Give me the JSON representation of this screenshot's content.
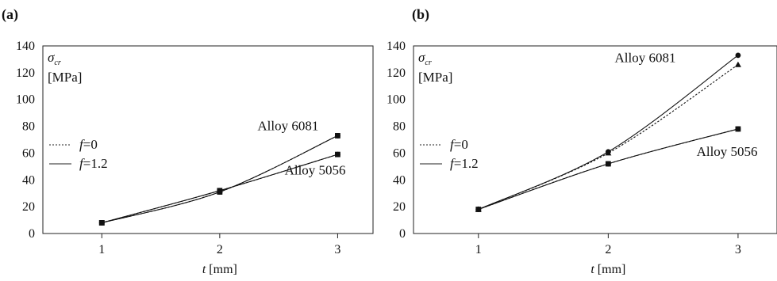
{
  "chart_data": [
    {
      "type": "line",
      "panel_label": "(a)",
      "x": [
        1,
        2,
        3
      ],
      "xlim": [
        0.5,
        3.3
      ],
      "ylim": [
        0,
        140
      ],
      "yticks": [
        0,
        20,
        40,
        60,
        80,
        100,
        120,
        140
      ],
      "xticks": [
        1,
        2,
        3
      ],
      "xlabel_var": "t",
      "xlabel_unit": " [mm]",
      "ylabel_var": "σ",
      "ylabel_sub": "cr",
      "ylabel_unit": "[MPa]",
      "legend": [
        {
          "var": "f",
          "text": "=0",
          "style": "dotted"
        },
        {
          "var": "f",
          "text": "=1.2",
          "style": "solid"
        }
      ],
      "series": [
        {
          "group": "Alloy 6081",
          "f": "0",
          "style": "dotted",
          "marker": "square",
          "values": [
            8,
            31,
            73
          ]
        },
        {
          "group": "Alloy 6081",
          "f": "1.2",
          "style": "solid",
          "marker": "circle",
          "values": [
            8,
            31,
            73
          ]
        },
        {
          "group": "Alloy 5056",
          "f": "0",
          "style": "dotted",
          "marker": "square",
          "values": [
            8,
            32,
            59
          ]
        },
        {
          "group": "Alloy 5056",
          "f": "1.2",
          "style": "solid",
          "marker": "circle",
          "values": [
            8,
            32,
            59
          ]
        }
      ],
      "annotations": [
        {
          "text": "Alloy 6081",
          "at": [
            2.32,
            77
          ]
        },
        {
          "text": "Alloy 5056",
          "at": [
            2.55,
            44
          ]
        }
      ]
    },
    {
      "type": "line",
      "panel_label": "(b)",
      "x": [
        1,
        2,
        3
      ],
      "xlim": [
        0.5,
        3.3
      ],
      "ylim": [
        0,
        140
      ],
      "yticks": [
        0,
        20,
        40,
        60,
        80,
        100,
        120,
        140
      ],
      "xticks": [
        1,
        2,
        3
      ],
      "xlabel_var": "t",
      "xlabel_unit": " [mm]",
      "ylabel_var": "σ",
      "ylabel_sub": "cr",
      "ylabel_unit": "[MPa]",
      "legend": [
        {
          "var": "f",
          "text": "=0",
          "style": "dotted"
        },
        {
          "var": "f",
          "text": "=1.2",
          "style": "solid"
        }
      ],
      "series": [
        {
          "group": "Alloy 6081",
          "f": "0",
          "style": "dotted",
          "marker": "triangle",
          "values": [
            18,
            60,
            126
          ]
        },
        {
          "group": "Alloy 6081",
          "f": "1.2",
          "style": "solid",
          "marker": "circle",
          "values": [
            18,
            61,
            133
          ]
        },
        {
          "group": "Alloy 5056",
          "f": "0",
          "style": "dotted",
          "marker": "square",
          "values": [
            18,
            52,
            78
          ]
        },
        {
          "group": "Alloy 5056",
          "f": "1.2",
          "style": "solid",
          "marker": "circle",
          "values": [
            18,
            52,
            78
          ]
        }
      ],
      "annotations": [
        {
          "text": "Alloy 6081",
          "at": [
            2.05,
            128
          ]
        },
        {
          "text": "Alloy 5056",
          "at": [
            2.68,
            58
          ]
        }
      ]
    }
  ]
}
